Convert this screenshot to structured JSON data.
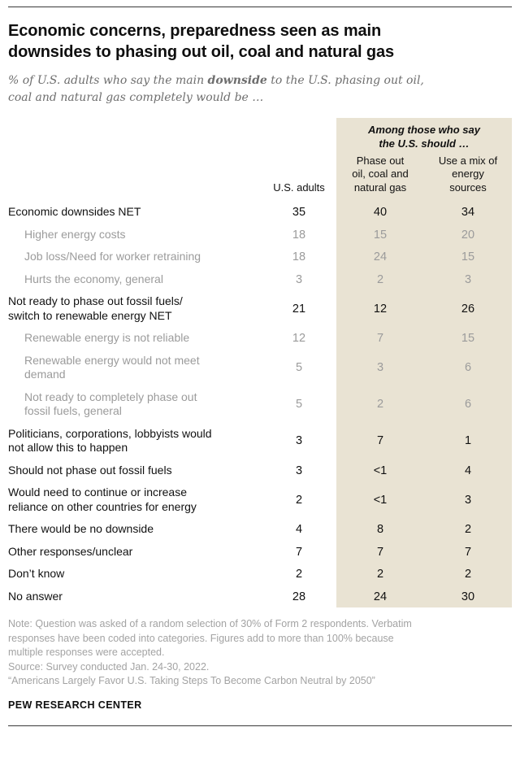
{
  "page": {
    "title": "Economic concerns, preparedness seen as main\ndownsides to phasing out oil, coal and natural gas",
    "subtitle": {
      "prefix": "% of U.S. adults who say the main ",
      "emphasis": "downside",
      "suffix": " to the U.S. phasing out oil,\ncoal and natural gas completely would be …"
    }
  },
  "chart_data": {
    "type": "table",
    "title": "Economic concerns, preparedness seen as main downsides to phasing out oil, coal and natural gas",
    "subtitle": "% of U.S. adults who say the main downside to the U.S. phasing out oil, coal and natural gas completely would be …",
    "group_header": "Among those who say\nthe U.S. should …",
    "columns": [
      "U.S. adults",
      "Phase out\noil, coal and\nnatural gas",
      "Use a mix of\nenergy\nsources"
    ],
    "shade_color": "#e9e3d3",
    "muted_text_color": "#9b9b9b",
    "rows": [
      {
        "label": "Economic downsides NET",
        "indent": false,
        "muted": false,
        "values": [
          "35",
          "40",
          "34"
        ]
      },
      {
        "label": "Higher energy costs",
        "indent": true,
        "muted": true,
        "values": [
          "18",
          "15",
          "20"
        ]
      },
      {
        "label": "Job loss/Need for worker retraining",
        "indent": true,
        "muted": true,
        "values": [
          "18",
          "24",
          "15"
        ]
      },
      {
        "label": "Hurts the economy, general",
        "indent": true,
        "muted": true,
        "values": [
          "3",
          "2",
          "3"
        ]
      },
      {
        "label": "Not ready to phase out fossil fuels/\nswitch to renewable energy NET",
        "indent": false,
        "muted": false,
        "values": [
          "21",
          "12",
          "26"
        ]
      },
      {
        "label": "Renewable energy is not reliable",
        "indent": true,
        "muted": true,
        "values": [
          "12",
          "7",
          "15"
        ]
      },
      {
        "label": "Renewable energy would not meet\ndemand",
        "indent": true,
        "muted": true,
        "values": [
          "5",
          "3",
          "6"
        ]
      },
      {
        "label": "Not ready to completely phase out\nfossil fuels, general",
        "indent": true,
        "muted": true,
        "values": [
          "5",
          "2",
          "6"
        ]
      },
      {
        "label": "Politicians, corporations, lobbyists would\nnot allow this to happen",
        "indent": false,
        "muted": false,
        "values": [
          "3",
          "7",
          "1"
        ]
      },
      {
        "label": "Should not phase out fossil fuels",
        "indent": false,
        "muted": false,
        "values": [
          "3",
          "<1",
          "4"
        ]
      },
      {
        "label": "Would need to continue or increase\nreliance on other countries for energy",
        "indent": false,
        "muted": false,
        "values": [
          "2",
          "<1",
          "3"
        ]
      },
      {
        "label": "There would be no downside",
        "indent": false,
        "muted": false,
        "values": [
          "4",
          "8",
          "2"
        ]
      },
      {
        "label": "Other responses/unclear",
        "indent": false,
        "muted": false,
        "values": [
          "7",
          "7",
          "7"
        ]
      },
      {
        "label": "Don’t know",
        "indent": false,
        "muted": false,
        "values": [
          "2",
          "2",
          "2"
        ]
      },
      {
        "label": "No answer",
        "indent": false,
        "muted": false,
        "values": [
          "28",
          "24",
          "30"
        ]
      }
    ]
  },
  "footer": {
    "note": "Note: Question was asked of a random selection of 30% of Form 2 respondents. Verbatim\nresponses have been coded into categories. Figures add to more than 100% because\nmultiple responses were accepted.",
    "source": "Source: Survey conducted Jan. 24-30, 2022.",
    "report": "“Americans Largely Favor U.S. Taking Steps To Become Carbon Neutral by 2050”",
    "brand": "PEW RESEARCH CENTER"
  }
}
